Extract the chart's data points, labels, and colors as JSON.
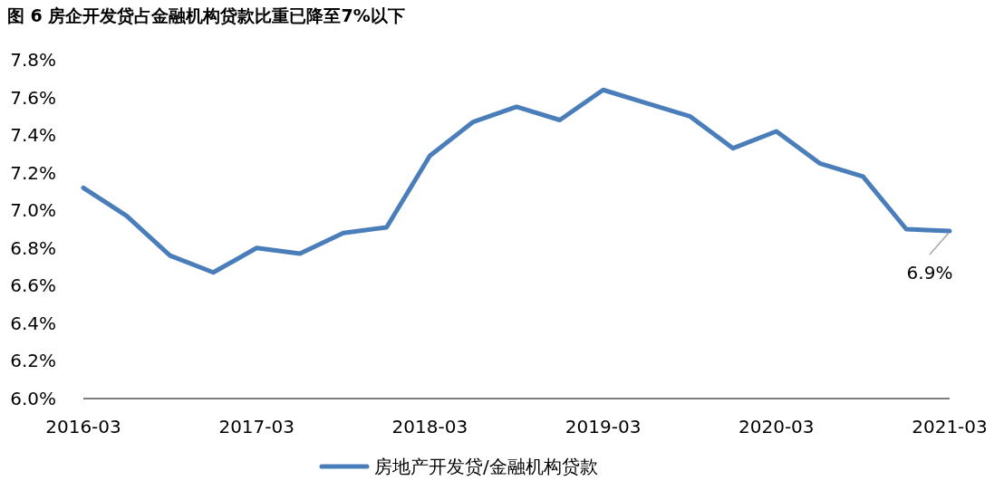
{
  "chart_data": {
    "type": "line",
    "title": "图 6 房企开发贷占金融机构贷款比重已降至7%以下",
    "x": [
      "2016-03",
      "2016-06",
      "2016-09",
      "2016-12",
      "2017-03",
      "2017-06",
      "2017-09",
      "2017-12",
      "2018-03",
      "2018-06",
      "2018-09",
      "2018-12",
      "2019-03",
      "2019-06",
      "2019-09",
      "2019-12",
      "2020-03",
      "2020-06",
      "2020-09",
      "2020-12",
      "2021-03"
    ],
    "series": [
      {
        "name": "房地产开发贷/金融机构贷款",
        "color": "#4a7ebb",
        "values": [
          7.12,
          6.97,
          6.76,
          6.67,
          6.8,
          6.77,
          6.88,
          6.91,
          7.29,
          7.47,
          7.55,
          7.48,
          7.64,
          7.57,
          7.5,
          7.33,
          7.42,
          7.25,
          7.18,
          6.9,
          6.89
        ],
        "value_labels": [
          null,
          null,
          null,
          null,
          null,
          null,
          null,
          null,
          null,
          null,
          null,
          null,
          null,
          null,
          null,
          null,
          null,
          null,
          null,
          null,
          "6.9%"
        ]
      }
    ],
    "xlim": [
      "2016-03",
      "2021-03"
    ],
    "xticks": [
      "2016-03",
      "2017-03",
      "2018-03",
      "2019-03",
      "2020-03",
      "2021-03"
    ],
    "ylim": [
      6.0,
      7.8
    ],
    "yticks": [
      {
        "value": 6.0,
        "label": "6.0%"
      },
      {
        "value": 6.2,
        "label": "6.2%"
      },
      {
        "value": 6.4,
        "label": "6.4%"
      },
      {
        "value": 6.6,
        "label": "6.6%"
      },
      {
        "value": 6.8,
        "label": "6.8%"
      },
      {
        "value": 7.0,
        "label": "7.0%"
      },
      {
        "value": 7.2,
        "label": "7.2%"
      },
      {
        "value": 7.4,
        "label": "7.4%"
      },
      {
        "value": 7.6,
        "label": "7.6%"
      },
      {
        "value": 7.8,
        "label": "7.8%"
      }
    ],
    "grid": false,
    "legend": "bottom",
    "marker": "none",
    "line_style": "solid"
  }
}
